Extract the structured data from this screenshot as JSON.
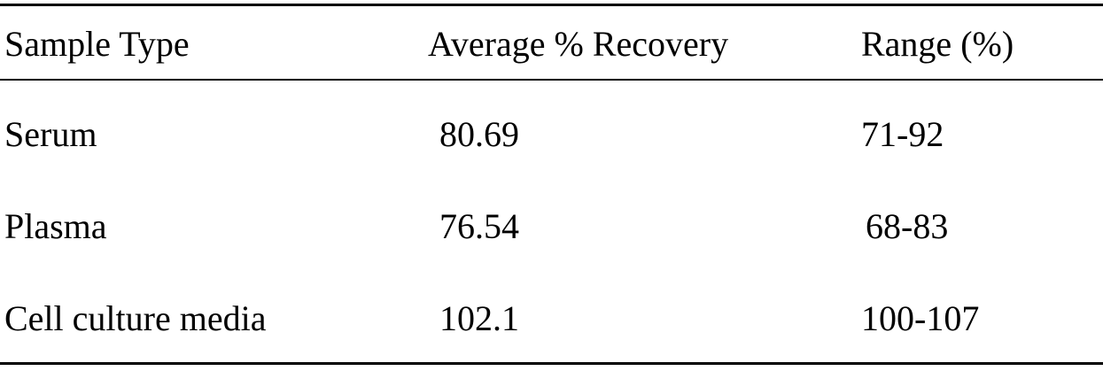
{
  "table": {
    "header": [
      "Sample Type",
      "Average % Recovery",
      "Range (%)"
    ],
    "rows": [
      [
        "Serum",
        "80.69",
        "71-92"
      ],
      [
        "Plasma",
        "76.54",
        "68-83"
      ],
      [
        "Cell culture media",
        "102.1",
        "100-107"
      ]
    ]
  }
}
